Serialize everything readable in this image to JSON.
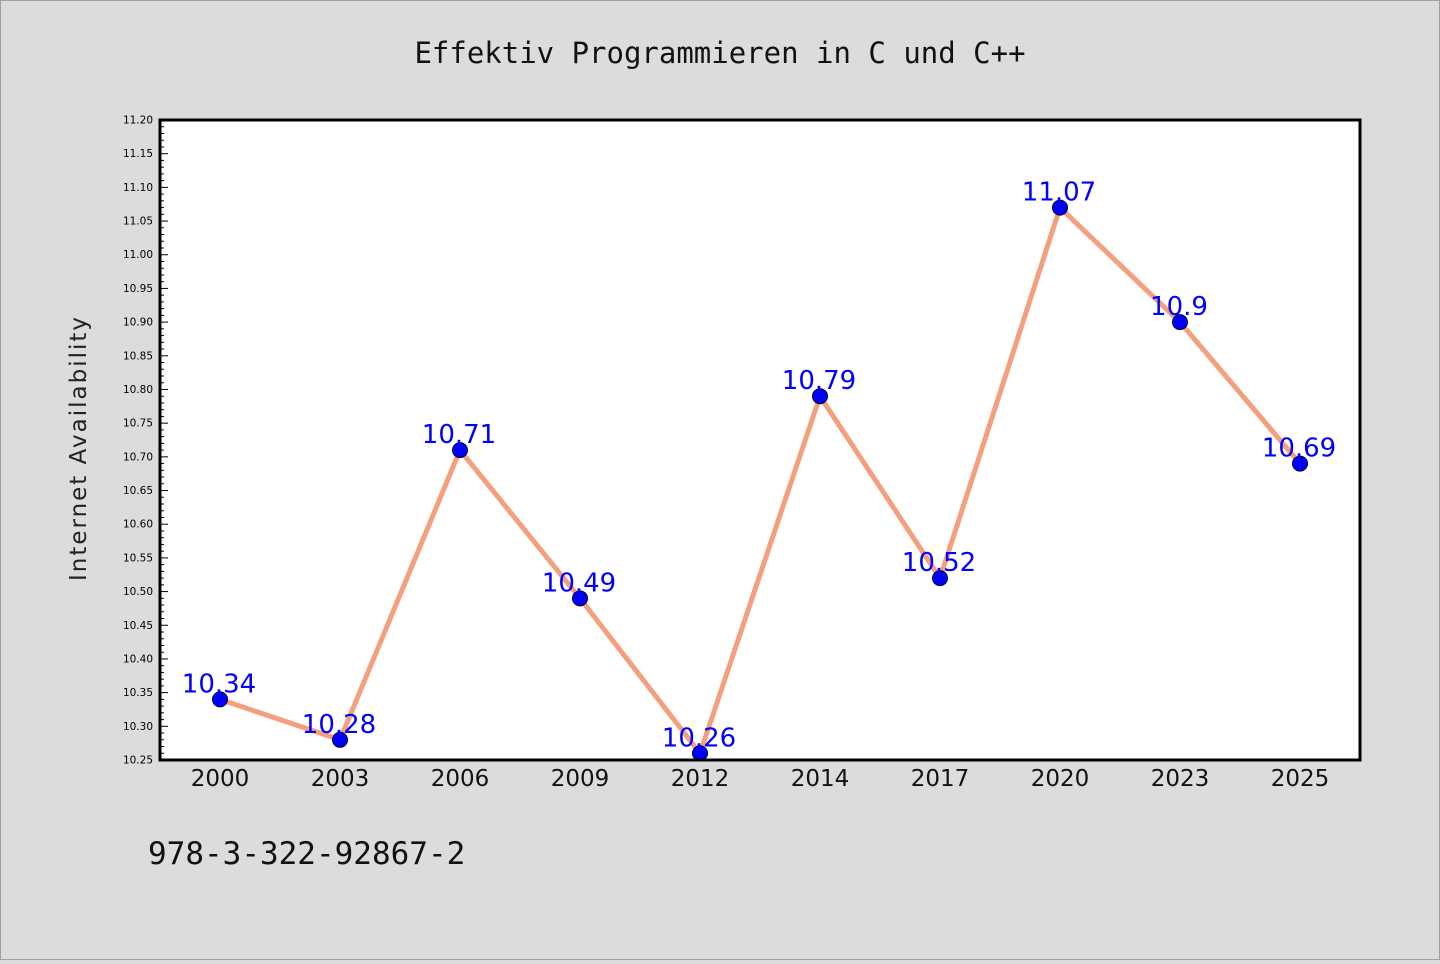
{
  "chart_data": {
    "type": "line",
    "title": "Effektiv Programmieren in C und C++",
    "xlabel": "",
    "ylabel": "Internet Availability",
    "categories": [
      "2000",
      "2003",
      "2006",
      "2009",
      "2012",
      "2014",
      "2017",
      "2020",
      "2023",
      "2025"
    ],
    "series": [
      {
        "values": [
          10.34,
          10.28,
          10.71,
          10.49,
          10.26,
          10.79,
          10.52,
          11.07,
          10.9,
          10.69
        ],
        "data_labels": [
          "10.34",
          "10.28",
          "10.71",
          "10.49",
          "10.26",
          "10.79",
          "10.52",
          "11.07",
          "10.9",
          "10.69"
        ]
      }
    ],
    "ylim": [
      10.25,
      11.2
    ],
    "yticks": [
      "10.25",
      "10.30",
      "10.35",
      "10.40",
      "10.45",
      "10.50",
      "10.55",
      "10.60",
      "10.65",
      "10.70",
      "10.75",
      "10.80",
      "10.85",
      "10.90",
      "10.95",
      "11.00",
      "11.05",
      "11.10",
      "11.15",
      "11.20"
    ],
    "grid": false,
    "legend": "none",
    "colors": {
      "line": "#f4a07e",
      "marker": "#0000ff",
      "label": "#0000ff",
      "background": "#dcdcdc",
      "plot_background": "#ffffff"
    }
  },
  "footer_text": "978-3-322-92867-2"
}
